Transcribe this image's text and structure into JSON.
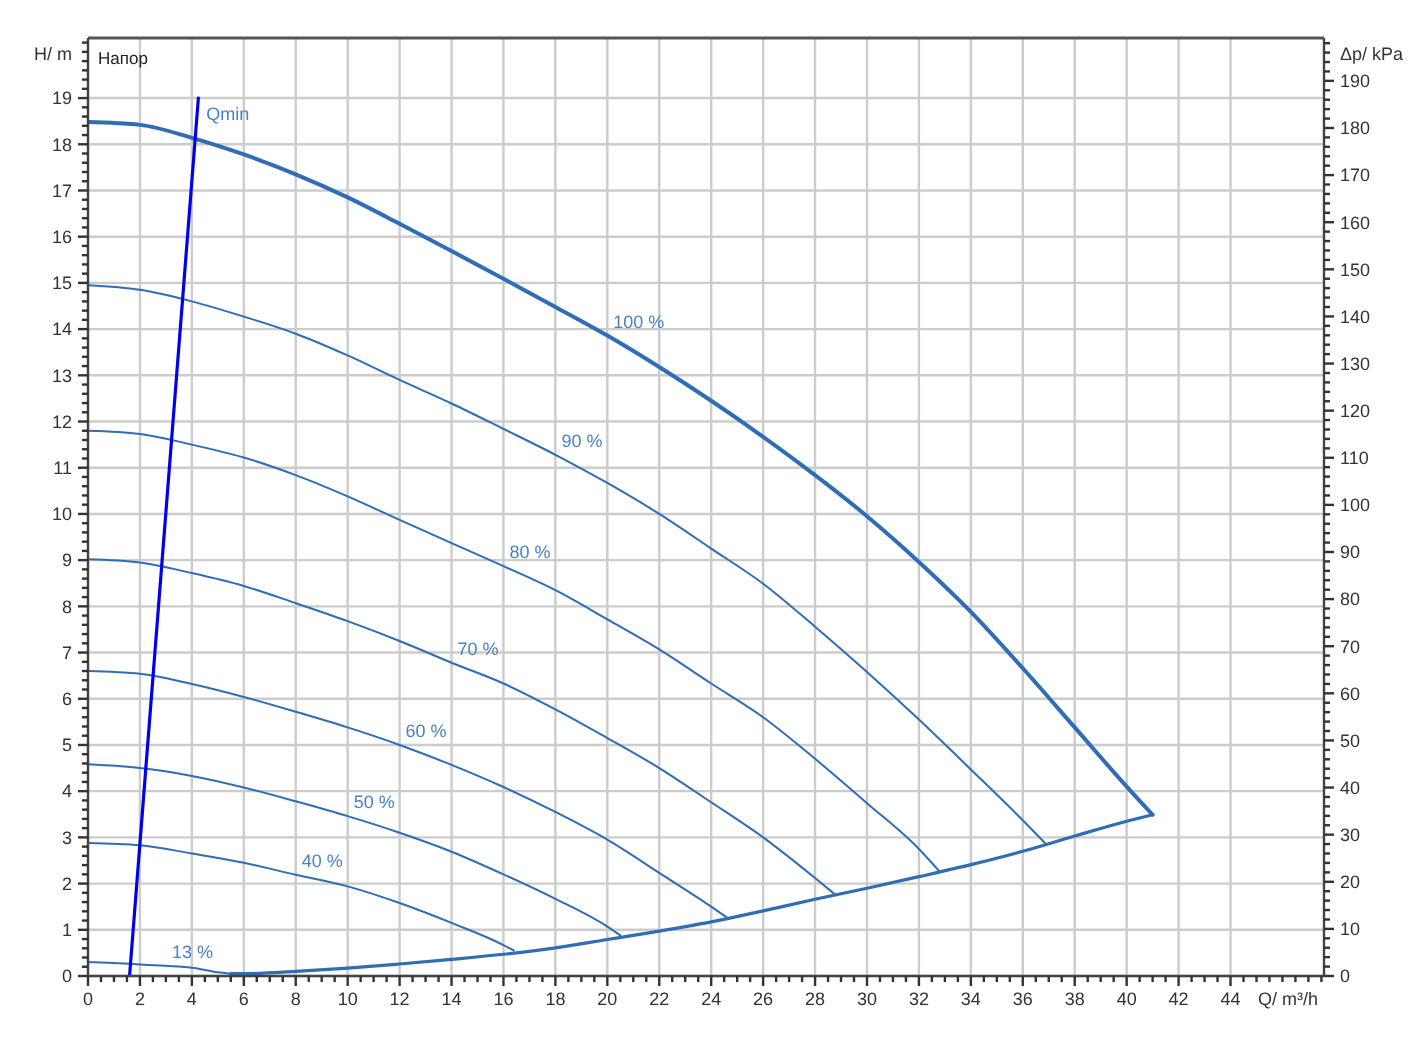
{
  "chart_data": {
    "type": "line",
    "title": "Напор",
    "xlabel": "Q/ m³/h",
    "ylabel": "H/ m",
    "y2label": "Δp/ kPa",
    "xlim": [
      0,
      47.6
    ],
    "ylim": [
      0,
      20.3
    ],
    "y2lim": [
      0,
      199.1
    ],
    "xticks": [
      0,
      {
        "value": 0.5,
        "label": null
      },
      {
        "value": 1,
        "label": null
      },
      {
        "value": 1.5,
        "label": null
      },
      2,
      {
        "value": 2.5,
        "label": null
      },
      {
        "value": 3,
        "label": null
      },
      {
        "value": 3.5,
        "label": null
      },
      4,
      {
        "value": 4.5,
        "label": null
      },
      {
        "value": 5,
        "label": null
      },
      {
        "value": 5.5,
        "label": null
      },
      6,
      {
        "value": 6.5,
        "label": null
      },
      {
        "value": 7,
        "label": null
      },
      {
        "value": 7.5,
        "label": null
      },
      8,
      {
        "value": 8.5,
        "label": null
      },
      {
        "value": 9,
        "label": null
      },
      {
        "value": 9.5,
        "label": null
      },
      10,
      {
        "value": 10.5,
        "label": null
      },
      {
        "value": 11,
        "label": null
      },
      {
        "value": 11.5,
        "label": null
      },
      12,
      {
        "value": 12.5,
        "label": null
      },
      {
        "value": 13,
        "label": null
      },
      {
        "value": 13.5,
        "label": null
      },
      14,
      {
        "value": 14.5,
        "label": null
      },
      {
        "value": 15,
        "label": null
      },
      {
        "value": 15.5,
        "label": null
      },
      16,
      {
        "value": 16.5,
        "label": null
      },
      {
        "value": 17,
        "label": null
      },
      {
        "value": 17.5,
        "label": null
      },
      18,
      {
        "value": 18.5,
        "label": null
      },
      {
        "value": 19,
        "label": null
      },
      {
        "value": 19.5,
        "label": null
      },
      20,
      {
        "value": 20.5,
        "label": null
      },
      {
        "value": 21,
        "label": null
      },
      {
        "value": 21.5,
        "label": null
      },
      22,
      {
        "value": 22.5,
        "label": null
      },
      {
        "value": 23,
        "label": null
      },
      {
        "value": 23.5,
        "label": null
      },
      24,
      {
        "value": 24.5,
        "label": null
      },
      {
        "value": 25,
        "label": null
      },
      {
        "value": 25.5,
        "label": null
      },
      26,
      {
        "value": 26.5,
        "label": null
      },
      {
        "value": 27,
        "label": null
      },
      {
        "value": 27.5,
        "label": null
      },
      28,
      {
        "value": 28.5,
        "label": null
      },
      {
        "value": 29,
        "label": null
      },
      {
        "value": 29.5,
        "label": null
      },
      30,
      {
        "value": 30.5,
        "label": null
      },
      {
        "value": 31,
        "label": null
      },
      {
        "value": 31.5,
        "label": null
      },
      32,
      {
        "value": 32.5,
        "label": null
      },
      {
        "value": 33,
        "label": null
      },
      {
        "value": 33.5,
        "label": null
      },
      34,
      {
        "value": 34.5,
        "label": null
      },
      {
        "value": 35,
        "label": null
      },
      {
        "value": 35.5,
        "label": null
      },
      36,
      {
        "value": 36.5,
        "label": null
      },
      {
        "value": 37,
        "label": null
      },
      {
        "value": 37.5,
        "label": null
      },
      38,
      {
        "value": 38.5,
        "label": null
      },
      {
        "value": 39,
        "label": null
      },
      {
        "value": 39.5,
        "label": null
      },
      40,
      {
        "value": 40.5,
        "label": null
      },
      {
        "value": 41,
        "label": null
      },
      {
        "value": 41.5,
        "label": null
      },
      42,
      {
        "value": 42.5,
        "label": null
      },
      {
        "value": 43,
        "label": null
      },
      {
        "value": 43.5,
        "label": null
      },
      44,
      {
        "value": 44.5,
        "label": null
      },
      {
        "value": 45,
        "label": null
      },
      {
        "value": 45.5,
        "label": null
      },
      {
        "value": 46,
        "label": null
      },
      {
        "value": 46.5,
        "label": null
      },
      {
        "value": 47,
        "label": null
      },
      {
        "value": 47.5,
        "label": null
      }
    ],
    "yticks": [
      0,
      {
        "value": 0.2,
        "label": null
      },
      {
        "value": 0.4,
        "label": null
      },
      {
        "value": 0.6,
        "label": null
      },
      {
        "value": 0.8,
        "label": null
      },
      1,
      {
        "value": 1.2,
        "label": null
      },
      {
        "value": 1.4,
        "label": null
      },
      {
        "value": 1.6,
        "label": null
      },
      {
        "value": 1.8,
        "label": null
      },
      2,
      {
        "value": 2.2,
        "label": null
      },
      {
        "value": 2.4,
        "label": null
      },
      {
        "value": 2.6,
        "label": null
      },
      {
        "value": 2.8,
        "label": null
      },
      3,
      {
        "value": 3.2,
        "label": null
      },
      {
        "value": 3.4,
        "label": null
      },
      {
        "value": 3.6,
        "label": null
      },
      {
        "value": 3.8,
        "label": null
      },
      4,
      {
        "value": 4.2,
        "label": null
      },
      {
        "value": 4.4,
        "label": null
      },
      {
        "value": 4.6,
        "label": null
      },
      {
        "value": 4.8,
        "label": null
      },
      5,
      {
        "value": 5.2,
        "label": null
      },
      {
        "value": 5.4,
        "label": null
      },
      {
        "value": 5.6,
        "label": null
      },
      {
        "value": 5.8,
        "label": null
      },
      6,
      {
        "value": 6.2,
        "label": null
      },
      {
        "value": 6.4,
        "label": null
      },
      {
        "value": 6.6,
        "label": null
      },
      {
        "value": 6.8,
        "label": null
      },
      7,
      {
        "value": 7.2,
        "label": null
      },
      {
        "value": 7.4,
        "label": null
      },
      {
        "value": 7.6,
        "label": null
      },
      {
        "value": 7.8,
        "label": null
      },
      8,
      {
        "value": 8.2,
        "label": null
      },
      {
        "value": 8.4,
        "label": null
      },
      {
        "value": 8.6,
        "label": null
      },
      {
        "value": 8.8,
        "label": null
      },
      9,
      {
        "value": 9.2,
        "label": null
      },
      {
        "value": 9.4,
        "label": null
      },
      {
        "value": 9.6,
        "label": null
      },
      {
        "value": 9.8,
        "label": null
      },
      10,
      {
        "value": 10.2,
        "label": null
      },
      {
        "value": 10.4,
        "label": null
      },
      {
        "value": 10.6,
        "label": null
      },
      {
        "value": 10.8,
        "label": null
      },
      11,
      {
        "value": 11.2,
        "label": null
      },
      {
        "value": 11.4,
        "label": null
      },
      {
        "value": 11.6,
        "label": null
      },
      {
        "value": 11.8,
        "label": null
      },
      12,
      {
        "value": 12.2,
        "label": null
      },
      {
        "value": 12.4,
        "label": null
      },
      {
        "value": 12.6,
        "label": null
      },
      {
        "value": 12.8,
        "label": null
      },
      13,
      {
        "value": 13.2,
        "label": null
      },
      {
        "value": 13.4,
        "label": null
      },
      {
        "value": 13.6,
        "label": null
      },
      {
        "value": 13.8,
        "label": null
      },
      14,
      {
        "value": 14.2,
        "label": null
      },
      {
        "value": 14.4,
        "label": null
      },
      {
        "value": 14.6,
        "label": null
      },
      {
        "value": 14.8,
        "label": null
      },
      15,
      {
        "value": 15.2,
        "label": null
      },
      {
        "value": 15.4,
        "label": null
      },
      {
        "value": 15.6,
        "label": null
      },
      {
        "value": 15.8,
        "label": null
      },
      16,
      {
        "value": 16.2,
        "label": null
      },
      {
        "value": 16.4,
        "label": null
      },
      {
        "value": 16.6,
        "label": null
      },
      {
        "value": 16.8,
        "label": null
      },
      17,
      {
        "value": 17.2,
        "label": null
      },
      {
        "value": 17.4,
        "label": null
      },
      {
        "value": 17.6,
        "label": null
      },
      {
        "value": 17.8,
        "label": null
      },
      18,
      {
        "value": 18.2,
        "label": null
      },
      {
        "value": 18.4,
        "label": null
      },
      {
        "value": 18.6,
        "label": null
      },
      {
        "value": 18.8,
        "label": null
      },
      19,
      {
        "value": 19.2,
        "label": null
      },
      {
        "value": 19.4,
        "label": null
      },
      {
        "value": 19.6,
        "label": null
      },
      {
        "value": 19.8,
        "label": null
      },
      {
        "value": 20,
        "label": null
      },
      {
        "value": 20.2,
        "label": null
      }
    ],
    "y2ticks": [
      0,
      {
        "value": 2,
        "label": null
      },
      {
        "value": 4,
        "label": null
      },
      {
        "value": 6,
        "label": null
      },
      {
        "value": 8,
        "label": null
      },
      10,
      {
        "value": 12,
        "label": null
      },
      {
        "value": 14,
        "label": null
      },
      {
        "value": 16,
        "label": null
      },
      {
        "value": 18,
        "label": null
      },
      20,
      {
        "value": 22,
        "label": null
      },
      {
        "value": 24,
        "label": null
      },
      {
        "value": 26,
        "label": null
      },
      {
        "value": 28,
        "label": null
      },
      30,
      {
        "value": 32,
        "label": null
      },
      {
        "value": 34,
        "label": null
      },
      {
        "value": 36,
        "label": null
      },
      {
        "value": 38,
        "label": null
      },
      40,
      {
        "value": 42,
        "label": null
      },
      {
        "value": 44,
        "label": null
      },
      {
        "value": 46,
        "label": null
      },
      {
        "value": 48,
        "label": null
      },
      50,
      {
        "value": 52,
        "label": null
      },
      {
        "value": 54,
        "label": null
      },
      {
        "value": 56,
        "label": null
      },
      {
        "value": 58,
        "label": null
      },
      60,
      {
        "value": 62,
        "label": null
      },
      {
        "value": 64,
        "label": null
      },
      {
        "value": 66,
        "label": null
      },
      {
        "value": 68,
        "label": null
      },
      70,
      {
        "value": 72,
        "label": null
      },
      {
        "value": 74,
        "label": null
      },
      {
        "value": 76,
        "label": null
      },
      {
        "value": 78,
        "label": null
      },
      80,
      {
        "value": 82,
        "label": null
      },
      {
        "value": 84,
        "label": null
      },
      {
        "value": 86,
        "label": null
      },
      {
        "value": 88,
        "label": null
      },
      90,
      {
        "value": 92,
        "label": null
      },
      {
        "value": 94,
        "label": null
      },
      {
        "value": 96,
        "label": null
      },
      {
        "value": 98,
        "label": null
      },
      100,
      {
        "value": 102,
        "label": null
      },
      {
        "value": 104,
        "label": null
      },
      {
        "value": 106,
        "label": null
      },
      {
        "value": 108,
        "label": null
      },
      110,
      {
        "value": 112,
        "label": null
      },
      {
        "value": 114,
        "label": null
      },
      {
        "value": 116,
        "label": null
      },
      {
        "value": 118,
        "label": null
      },
      120,
      {
        "value": 122,
        "label": null
      },
      {
        "value": 124,
        "label": null
      },
      {
        "value": 126,
        "label": null
      },
      {
        "value": 128,
        "label": null
      },
      130,
      {
        "value": 132,
        "label": null
      },
      {
        "value": 134,
        "label": null
      },
      {
        "value": 136,
        "label": null
      },
      {
        "value": 138,
        "label": null
      },
      140,
      {
        "value": 142,
        "label": null
      },
      {
        "value": 144,
        "label": null
      },
      {
        "value": 146,
        "label": null
      },
      {
        "value": 148,
        "label": null
      },
      150,
      {
        "value": 152,
        "label": null
      },
      {
        "value": 154,
        "label": null
      },
      {
        "value": 156,
        "label": null
      },
      {
        "value": 158,
        "label": null
      },
      160,
      {
        "value": 162,
        "label": null
      },
      {
        "value": 164,
        "label": null
      },
      {
        "value": 166,
        "label": null
      },
      {
        "value": 168,
        "label": null
      },
      170,
      {
        "value": 172,
        "label": null
      },
      {
        "value": 174,
        "label": null
      },
      {
        "value": 176,
        "label": null
      },
      {
        "value": 178,
        "label": null
      },
      180,
      {
        "value": 182,
        "label": null
      },
      {
        "value": 184,
        "label": null
      },
      {
        "value": 186,
        "label": null
      },
      {
        "value": 188,
        "label": null
      },
      190,
      {
        "value": 192,
        "label": null
      },
      {
        "value": 194,
        "label": null
      },
      {
        "value": 196,
        "label": null
      },
      {
        "value": 198,
        "label": null
      }
    ],
    "grid": true,
    "series": [
      {
        "name": "100 %",
        "color": "#2f6db5",
        "x": [
          0,
          2,
          4,
          6,
          8,
          10,
          12,
          14,
          16,
          18,
          20,
          22,
          24,
          26,
          28,
          30,
          32,
          34,
          36,
          38,
          40,
          41
        ],
        "values": [
          18.48,
          18.42,
          18.14,
          17.78,
          17.35,
          16.85,
          16.28,
          15.69,
          15.09,
          14.48,
          13.86,
          13.18,
          12.45,
          11.67,
          10.84,
          9.95,
          8.96,
          7.88,
          6.66,
          5.38,
          4.1,
          3.49
        ]
      },
      {
        "name": "90 %",
        "color": "#2f6db5",
        "x": [
          0,
          2,
          4,
          6,
          8,
          10,
          12,
          14,
          16,
          18,
          20,
          22,
          24,
          26,
          28,
          30,
          32,
          34,
          36,
          36.9
        ],
        "values": [
          14.95,
          14.85,
          14.6,
          14.27,
          13.9,
          13.43,
          12.9,
          12.39,
          11.84,
          11.28,
          10.67,
          10.0,
          9.25,
          8.49,
          7.56,
          6.58,
          5.55,
          4.47,
          3.37,
          2.85
        ]
      },
      {
        "name": "80 %",
        "color": "#2f6db5",
        "x": [
          0,
          2,
          4,
          6,
          8,
          10,
          12,
          14,
          16,
          18,
          20,
          22,
          24,
          26,
          28,
          30,
          32,
          32.8
        ],
        "values": [
          11.8,
          11.73,
          11.5,
          11.22,
          10.84,
          10.38,
          9.87,
          9.37,
          8.87,
          8.35,
          7.72,
          7.07,
          6.33,
          5.6,
          4.7,
          3.74,
          2.75,
          2.26
        ]
      },
      {
        "name": "70 %",
        "color": "#2f6db5",
        "x": [
          0,
          2,
          4,
          6,
          8,
          10,
          12,
          14,
          16,
          18,
          20,
          22,
          24,
          26,
          28,
          28.8
        ],
        "values": [
          9.02,
          8.95,
          8.72,
          8.44,
          8.07,
          7.68,
          7.25,
          6.78,
          6.33,
          5.77,
          5.15,
          4.5,
          3.76,
          3.0,
          2.12,
          1.75
        ]
      },
      {
        "name": "60 %",
        "color": "#2f6db5",
        "x": [
          0,
          2,
          4,
          6,
          8,
          10,
          12,
          14,
          16,
          18,
          20,
          22,
          24,
          24.6
        ],
        "values": [
          6.6,
          6.54,
          6.32,
          6.04,
          5.72,
          5.38,
          5.0,
          4.57,
          4.09,
          3.55,
          2.95,
          2.23,
          1.5,
          1.27
        ]
      },
      {
        "name": "50 %",
        "color": "#2f6db5",
        "x": [
          0,
          2,
          4,
          6,
          8,
          10,
          12,
          14,
          16,
          18,
          20,
          20.5
        ],
        "values": [
          4.58,
          4.5,
          4.33,
          4.08,
          3.78,
          3.46,
          3.1,
          2.69,
          2.2,
          1.67,
          1.07,
          0.88
        ]
      },
      {
        "name": "40 %",
        "color": "#2f6db5",
        "x": [
          0,
          2,
          4,
          6,
          8,
          10,
          12,
          14,
          16,
          16.4
        ],
        "values": [
          2.88,
          2.83,
          2.65,
          2.45,
          2.19,
          1.94,
          1.58,
          1.15,
          0.67,
          0.55
        ]
      },
      {
        "name": "13 %",
        "color": "#2f6db5",
        "x": [
          0,
          1,
          2,
          3,
          4,
          5,
          5.5
        ],
        "values": [
          0.3,
          0.28,
          0.25,
          0.22,
          0.18,
          0.08,
          0.05
        ]
      },
      {
        "color": "#2f6db5",
        "x": [
          5.5,
          6,
          8,
          10,
          12,
          14,
          16,
          18,
          20,
          22,
          24,
          26,
          28,
          30,
          32,
          34,
          36,
          38,
          40,
          41
        ],
        "values": [
          0.05,
          0.05,
          0.1,
          0.17,
          0.26,
          0.36,
          0.47,
          0.61,
          0.79,
          0.97,
          1.17,
          1.41,
          1.66,
          1.9,
          2.15,
          2.41,
          2.7,
          3.03,
          3.35,
          3.49
        ]
      },
      {
        "name": "Qmin",
        "color": "#0000ee",
        "x": [
          1.6,
          4.25
        ],
        "values": [
          0,
          19.0
        ]
      }
    ]
  }
}
